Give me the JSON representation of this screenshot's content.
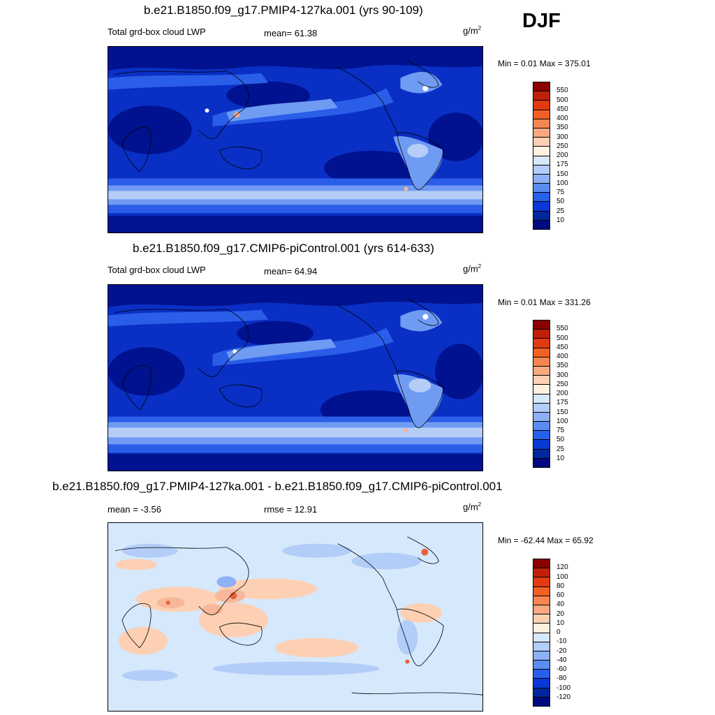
{
  "season": "DJF",
  "panels": [
    {
      "title": "b.e21.B1850.f09_g17.PMIP4-127ka.001 (yrs 90-109)",
      "left_label": "Total grd-box cloud LWP",
      "mid_label": "mean=  61.38",
      "units_base": "g/m",
      "units_exp": "2",
      "minmax": "Min =   0.01 Max = 375.01",
      "colorbar": {
        "labels": [
          "550",
          "500",
          "450",
          "400",
          "350",
          "300",
          "250",
          "200",
          "175",
          "150",
          "100",
          "75",
          "50",
          "25",
          "10"
        ],
        "colors": [
          "#8b0000",
          "#c0200a",
          "#e23a10",
          "#f45f26",
          "#f88650",
          "#faa882",
          "#fdd0b4",
          "#fff0e0",
          "#d6e8fb",
          "#b2cdf8",
          "#8db0f6",
          "#5a8cf2",
          "#2860ec",
          "#0a38d4",
          "#00289c",
          "#000a80"
        ]
      },
      "map_palette": {
        "ocean": "#0a2fc4",
        "deep": "#00128f",
        "mid": "#2a5ee8",
        "light": "#6f9bf3",
        "pale": "#b6cdf8",
        "hot": "#f8b090",
        "white": "#ffffff"
      }
    },
    {
      "title": "b.e21.B1850.f09_g17.CMIP6-piControl.001 (yrs 614-633)",
      "left_label": "Total grd-box cloud LWP",
      "mid_label": "mean=  64.94",
      "units_base": "g/m",
      "units_exp": "2",
      "minmax": "Min =   0.01 Max = 331.26",
      "colorbar": {
        "labels": [
          "550",
          "500",
          "450",
          "400",
          "350",
          "300",
          "250",
          "200",
          "175",
          "150",
          "100",
          "75",
          "50",
          "25",
          "10"
        ],
        "colors": [
          "#8b0000",
          "#c0200a",
          "#e23a10",
          "#f45f26",
          "#f88650",
          "#faa882",
          "#fdd0b4",
          "#fff0e0",
          "#d6e8fb",
          "#b2cdf8",
          "#8db0f6",
          "#5a8cf2",
          "#2860ec",
          "#0a38d4",
          "#00289c",
          "#000a80"
        ]
      },
      "map_palette": {
        "ocean": "#0a2fc4",
        "deep": "#00128f",
        "mid": "#2a5ee8",
        "light": "#6f9bf3",
        "pale": "#b6cdf8",
        "hot": "#f8b090",
        "white": "#ffffff"
      }
    },
    {
      "title": "b.e21.B1850.f09_g17.PMIP4-127ka.001 - b.e21.B1850.f09_g17.CMIP6-piControl.001",
      "left_label": "mean =  -3.56",
      "mid_label": "rmse =  12.91",
      "units_base": "g/m",
      "units_exp": "2",
      "minmax": "Min = -62.44 Max =  65.92",
      "colorbar": {
        "labels": [
          "120",
          "100",
          "80",
          "60",
          "40",
          "20",
          "10",
          "0",
          "-10",
          "-20",
          "-40",
          "-60",
          "-80",
          "-100",
          "-120"
        ],
        "colors": [
          "#8b0000",
          "#c0200a",
          "#e23a10",
          "#f45f26",
          "#f88650",
          "#faa882",
          "#fdd0b4",
          "#fff0e0",
          "#d6e8fb",
          "#b2cdf8",
          "#8db0f6",
          "#5a8cf2",
          "#2860ec",
          "#0a38d4",
          "#00289c",
          "#000a80"
        ]
      },
      "map_palette": {
        "ocean": "#d6e8fb",
        "deep": "#b2cdf8",
        "mid": "#8db0f6",
        "light": "#fdd0b4",
        "pale": "#f8b79a",
        "hot": "#e8603a",
        "white": "#ffffff"
      }
    }
  ]
}
